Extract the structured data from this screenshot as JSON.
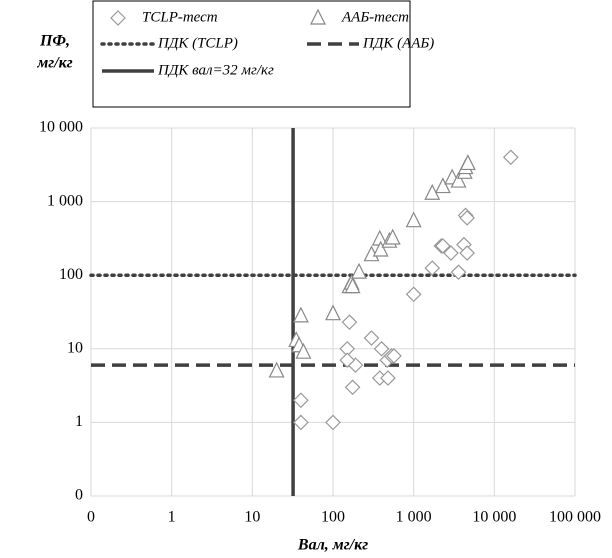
{
  "chart_data": {
    "type": "scatter",
    "y_label": "ПФ,",
    "y_unit": "мг/кг",
    "x_label": "Вал, мг/кг",
    "log_x": true,
    "log_y": true,
    "grid": true,
    "xlim": [
      0.1,
      100000
    ],
    "ylim": [
      0.1,
      10000
    ],
    "xticks": [
      {
        "value": 0.1,
        "label": "0"
      },
      1,
      10,
      100,
      {
        "value": 1000,
        "label": "1 000"
      },
      {
        "value": 10000,
        "label": "10 000"
      },
      {
        "value": 100000,
        "label": "100 000"
      }
    ],
    "yticks": [
      {
        "value": 0.1,
        "label": "0"
      },
      1,
      10,
      100,
      {
        "value": 1000,
        "label": "1 000"
      },
      {
        "value": 10000,
        "label": "10 000"
      }
    ],
    "series": [
      {
        "name": "TCLP-тест",
        "marker": "diamond",
        "color": "#999999",
        "x": [
          40,
          40,
          100,
          175,
          190,
          150,
          150,
          160,
          300,
          380,
          400,
          470,
          480,
          530,
          570,
          1000,
          1700,
          2200,
          2300,
          2900,
          3600,
          4200,
          4400,
          4600,
          4600,
          16000
        ],
        "values": [
          2,
          1,
          1,
          3,
          6,
          10,
          7,
          23,
          14,
          4,
          10,
          7,
          4,
          8,
          8,
          55,
          125,
          250,
          250,
          200,
          110,
          260,
          650,
          600,
          200,
          4000
        ]
      },
      {
        "name": "ААБ-тест",
        "marker": "triangle",
        "color": "#888888",
        "x": [
          20,
          35,
          40,
          38,
          43,
          100,
          160,
          170,
          175,
          210,
          300,
          380,
          390,
          500,
          550,
          1000,
          1700,
          2300,
          3000,
          3600,
          4300,
          4400,
          4700
        ],
        "values": [
          5,
          13,
          28,
          11,
          9,
          30,
          70,
          78,
          70,
          110,
          190,
          310,
          220,
          290,
          320,
          550,
          1300,
          1600,
          2100,
          1900,
          2500,
          2900,
          3300
        ]
      }
    ],
    "reference_lines": [
      {
        "name": "ПДК (TCLP)",
        "axis": "y",
        "value": 100,
        "style": "dotted",
        "color": "#404040"
      },
      {
        "name": "ПДК (ААБ)",
        "axis": "y",
        "value": 6,
        "style": "dashed",
        "color": "#404040"
      },
      {
        "name": "ПДК вал=32 мг/кг",
        "axis": "x",
        "value": 32,
        "style": "solid",
        "color": "#404040"
      }
    ]
  }
}
